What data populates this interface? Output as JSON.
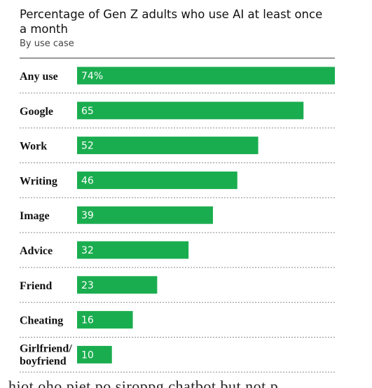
{
  "chart_data": {
    "type": "bar",
    "orientation": "horizontal",
    "title": "Percentage of Gen Z adults who use AI at least once a month",
    "subtitle": "By use case",
    "categories": [
      "Any use",
      "Google",
      "Work",
      "Writing",
      "Image",
      "Advice",
      "Friend",
      "Cheating",
      "Girlfriend/ boyfriend"
    ],
    "category_lines": [
      [
        "Any use"
      ],
      [
        "Google"
      ],
      [
        "Work"
      ],
      [
        "Writing"
      ],
      [
        "Image"
      ],
      [
        "Advice"
      ],
      [
        "Friend"
      ],
      [
        "Cheating"
      ],
      [
        "Girlfriend/",
        "boyfriend"
      ]
    ],
    "values": [
      74,
      65,
      52,
      46,
      39,
      32,
      23,
      16,
      10
    ],
    "value_labels": [
      "74%",
      "65",
      "52",
      "46",
      "39",
      "32",
      "23",
      "16",
      "10"
    ],
    "xlim": [
      0,
      74
    ],
    "grid": false,
    "legend": "none",
    "bar_color": "#1aad4f"
  },
  "footer_text": "hiot oho piet po siroppg chatbot but not p"
}
